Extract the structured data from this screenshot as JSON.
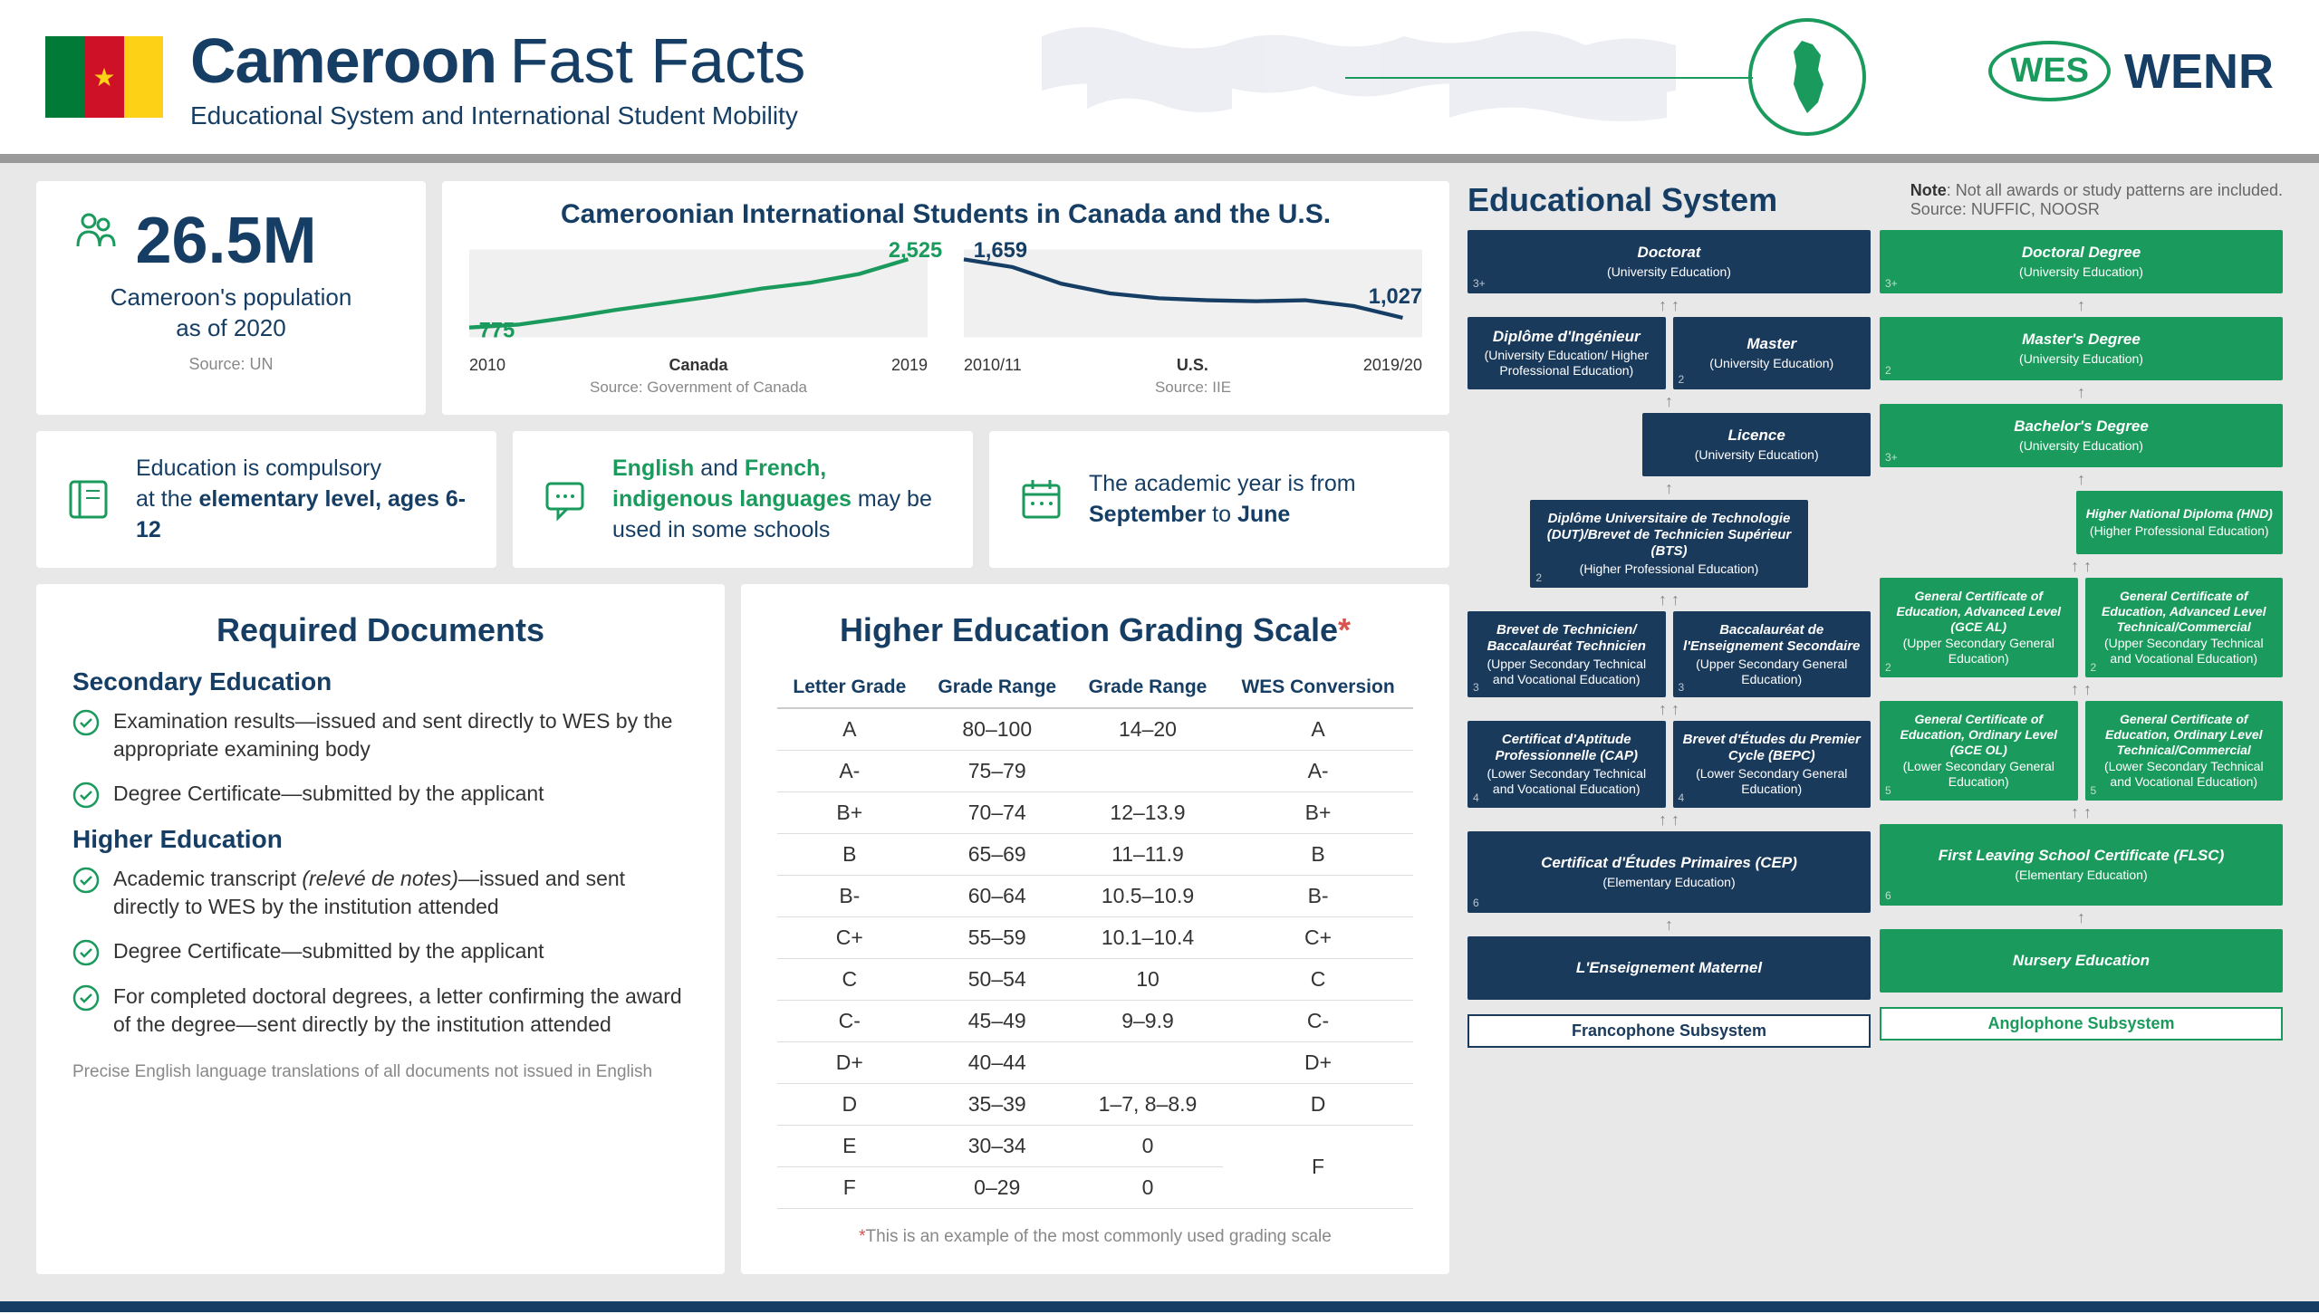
{
  "header": {
    "title": "Cameroon",
    "subtitle": "Fast Facts",
    "tagline": "Educational System and International Student Mobility",
    "logo1": "WES",
    "logo2": "WENR"
  },
  "population": {
    "value": "26.5M",
    "label1": "Cameroon's population",
    "label2": "as of 2020",
    "source": "Source: UN"
  },
  "charts": {
    "title": "Cameroonian International Students in Canada and the U.S.",
    "canada": {
      "start_label": "775",
      "end_label": "2,525",
      "x_start": "2010",
      "x_end": "2019",
      "country": "Canada",
      "source": "Source: Government of Canada",
      "color": "#1a9b5d",
      "points": [
        [
          0,
          90
        ],
        [
          50,
          87
        ],
        [
          100,
          80
        ],
        [
          150,
          72
        ],
        [
          200,
          65
        ],
        [
          250,
          58
        ],
        [
          300,
          50
        ],
        [
          350,
          44
        ],
        [
          400,
          35
        ],
        [
          450,
          20
        ]
      ]
    },
    "us": {
      "start_label": "1,659",
      "end_label": "1,027",
      "x_start": "2010/11",
      "x_end": "2019/20",
      "country": "U.S.",
      "source": "Source: IIE",
      "color": "#163e64",
      "points": [
        [
          0,
          20
        ],
        [
          50,
          28
        ],
        [
          100,
          45
        ],
        [
          150,
          55
        ],
        [
          200,
          60
        ],
        [
          250,
          62
        ],
        [
          300,
          63
        ],
        [
          350,
          62
        ],
        [
          400,
          68
        ],
        [
          450,
          80
        ]
      ]
    }
  },
  "facts": {
    "f1_a": "Education is compulsory",
    "f1_b": "at the ",
    "f1_c": "elementary level, ages 6-12",
    "f2_a": "English",
    "f2_b": " and ",
    "f2_c": "French, indigenous languages",
    "f2_d": " may be used in some schools",
    "f3_a": "The academic year is from ",
    "f3_b": "September",
    "f3_c": " to ",
    "f3_d": "June"
  },
  "docs": {
    "title": "Required Documents",
    "sec_title": "Secondary Education",
    "sec1": "Examination results—issued and sent directly to WES by the appropriate examining body",
    "sec2": "Degree Certificate—submitted by the applicant",
    "he_title": "Higher Education",
    "he1_a": "Academic transcript ",
    "he1_b": "(relevé de notes)",
    "he1_c": "—issued and sent directly to WES by the institution attended",
    "he2": "Degree Certificate—submitted by the applicant",
    "he3": "For completed doctoral degrees, a letter confirming the award of the degree—sent directly by the institution attended",
    "footnote": "Precise English language translations of all documents not issued in English"
  },
  "grading": {
    "title": "Higher Education Grading Scale",
    "col1": "Letter Grade",
    "col2": "Grade Range",
    "col3": "Grade Range",
    "col4": "WES Conversion",
    "rows": [
      [
        "A",
        "80–100",
        "14–20",
        "A"
      ],
      [
        "A-",
        "75–79",
        "",
        "A-"
      ],
      [
        "B+",
        "70–74",
        "12–13.9",
        "B+"
      ],
      [
        "B",
        "65–69",
        "11–11.9",
        "B"
      ],
      [
        "B-",
        "60–64",
        "10.5–10.9",
        "B-"
      ],
      [
        "C+",
        "55–59",
        "10.1–10.4",
        "C+"
      ],
      [
        "C",
        "50–54",
        "10",
        "C"
      ],
      [
        "C-",
        "45–49",
        "9–9.9",
        "C-"
      ],
      [
        "D+",
        "40–44",
        "",
        "D+"
      ],
      [
        "D",
        "35–39",
        "1–7, 8–8.9",
        "D"
      ],
      [
        "E",
        "30–34",
        "0",
        ""
      ],
      [
        "F",
        "0–29",
        "0",
        "F"
      ]
    ],
    "footnote": "This is an example of the most commonly used grading scale"
  },
  "edu": {
    "title": "Educational System",
    "note_label": "Note",
    "note_text": ": Not all awards or study patterns are included.",
    "source": "Source: NUFFIC, NOOSR",
    "franco_label": "Francophone Subsystem",
    "anglo_label": "Anglophone Subsystem",
    "franco": {
      "doctorat": {
        "t": "Doctorat",
        "s": "(University Education)",
        "n": "3+"
      },
      "ingenieur": {
        "t": "Diplôme d'Ingénieur",
        "s": "(University Education/ Higher Professional Education)",
        "n": ""
      },
      "master": {
        "t": "Master",
        "s": "(University Education)",
        "n": "2"
      },
      "licence": {
        "t": "Licence",
        "s": "(University Education)",
        "n": ""
      },
      "dut": {
        "t": "Diplôme Universitaire de Technologie (DUT)/Brevet de Technicien Supérieur (BTS)",
        "s": "(Higher Professional Education)",
        "n": "2"
      },
      "btech": {
        "t": "Brevet de Technicien/ Baccalauréat Technicien",
        "s": "(Upper Secondary Technical and Vocational Education)",
        "n": "3"
      },
      "bac": {
        "t": "Baccalauréat de l'Enseignement Secondaire",
        "s": "(Upper Secondary General Education)",
        "n": "3"
      },
      "cap": {
        "t": "Certificat d'Aptitude Professionnelle (CAP)",
        "s": "(Lower Secondary Technical and Vocational Education)",
        "n": "4"
      },
      "bepc": {
        "t": "Brevet d'Études du Premier Cycle (BEPC)",
        "s": "(Lower Secondary General Education)",
        "n": "4"
      },
      "cep": {
        "t": "Certificat d'Études Primaires (CEP)",
        "s": "(Elementary Education)",
        "n": "6"
      },
      "maternel": {
        "t": "L'Enseignement Maternel",
        "s": "",
        "n": ""
      }
    },
    "anglo": {
      "doctoral": {
        "t": "Doctoral Degree",
        "s": "(University Education)",
        "n": "3+"
      },
      "masters": {
        "t": "Master's Degree",
        "s": "(University Education)",
        "n": "2"
      },
      "bachelors": {
        "t": "Bachelor's Degree",
        "s": "(University Education)",
        "n": "3+"
      },
      "hnd": {
        "t": "Higher National Diploma (HND)",
        "s": "(Higher Professional Education)",
        "n": ""
      },
      "gceal1": {
        "t": "General Certificate of Education, Advanced Level (GCE AL)",
        "s": "(Upper Secondary General Education)",
        "n": "2"
      },
      "gceal2": {
        "t": "General Certificate of Education, Advanced Level Technical/Commercial",
        "s": "(Upper Secondary Technical and Vocational Education)",
        "n": "2"
      },
      "gceol1": {
        "t": "General Certificate of Education, Ordinary Level (GCE OL)",
        "s": "(Lower Secondary General Education)",
        "n": "5"
      },
      "gceol2": {
        "t": "General Certificate of Education, Ordinary Level Technical/Commercial",
        "s": "(Lower Secondary Technical and Vocational Education)",
        "n": "5"
      },
      "flsc": {
        "t": "First Leaving School Certificate (FLSC)",
        "s": "(Elementary Education)",
        "n": "6"
      },
      "nursery": {
        "t": "Nursery Education",
        "s": "",
        "n": ""
      }
    }
  }
}
